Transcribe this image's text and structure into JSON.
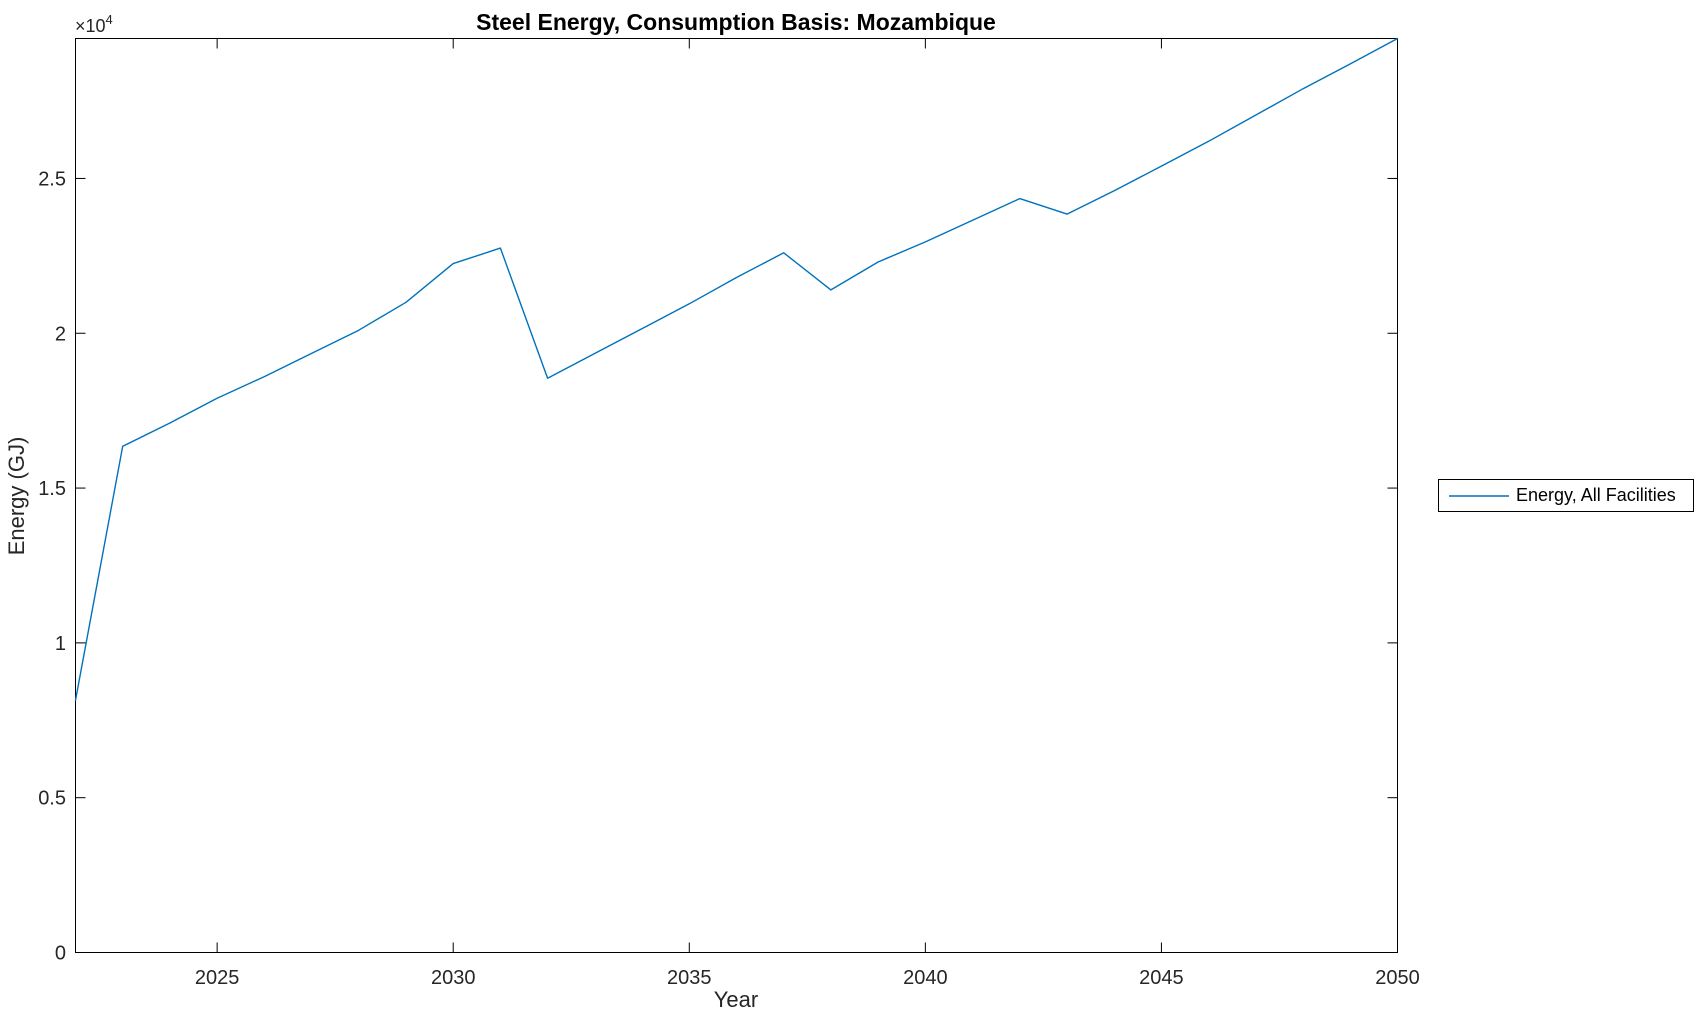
{
  "figure": {
    "background": "#ffffff",
    "axis_color": "#262626"
  },
  "axes": {
    "multiplier_base": "×10",
    "multiplier_exp": "4"
  },
  "legend": {
    "position": "right-outside",
    "entries": [
      {
        "label": "Energy, All Facilities",
        "color": "#0072BD"
      }
    ]
  },
  "chart_data": {
    "type": "line",
    "title": "Steel Energy, Consumption Basis: Mozambique",
    "xlabel": "Year",
    "ylabel": "Energy (GJ)",
    "y_axis_multiplier": "×10^4",
    "grid": false,
    "xlim": [
      2022,
      2050
    ],
    "ylim": [
      0,
      29520
    ],
    "xticks": {
      "values": [
        2025,
        2030,
        2035,
        2040,
        2045,
        2050
      ],
      "labels": [
        "2025",
        "2030",
        "2035",
        "2040",
        "2045",
        "2050"
      ]
    },
    "yticks": {
      "values": [
        0,
        5000,
        10000,
        15000,
        20000,
        25000
      ],
      "labels": [
        "0",
        "0.5",
        "1",
        "1.5",
        "2",
        "2.5"
      ]
    },
    "x": [
      2022,
      2023,
      2024,
      2025,
      2026,
      2027,
      2028,
      2029,
      2030,
      2031,
      2032,
      2033,
      2034,
      2035,
      2036,
      2037,
      2038,
      2039,
      2040,
      2041,
      2042,
      2043,
      2044,
      2045,
      2046,
      2047,
      2048,
      2049,
      2050
    ],
    "series": [
      {
        "name": "Energy, All Facilities",
        "color": "#0072BD",
        "values": [
          8150,
          16350,
          17100,
          17900,
          18600,
          19350,
          20100,
          21000,
          22250,
          22750,
          18550,
          19350,
          20150,
          20950,
          21800,
          22600,
          21400,
          22300,
          22950,
          23650,
          24350,
          23850,
          24600,
          25400,
          26200,
          27050,
          27900,
          28700,
          29520
        ]
      }
    ]
  }
}
